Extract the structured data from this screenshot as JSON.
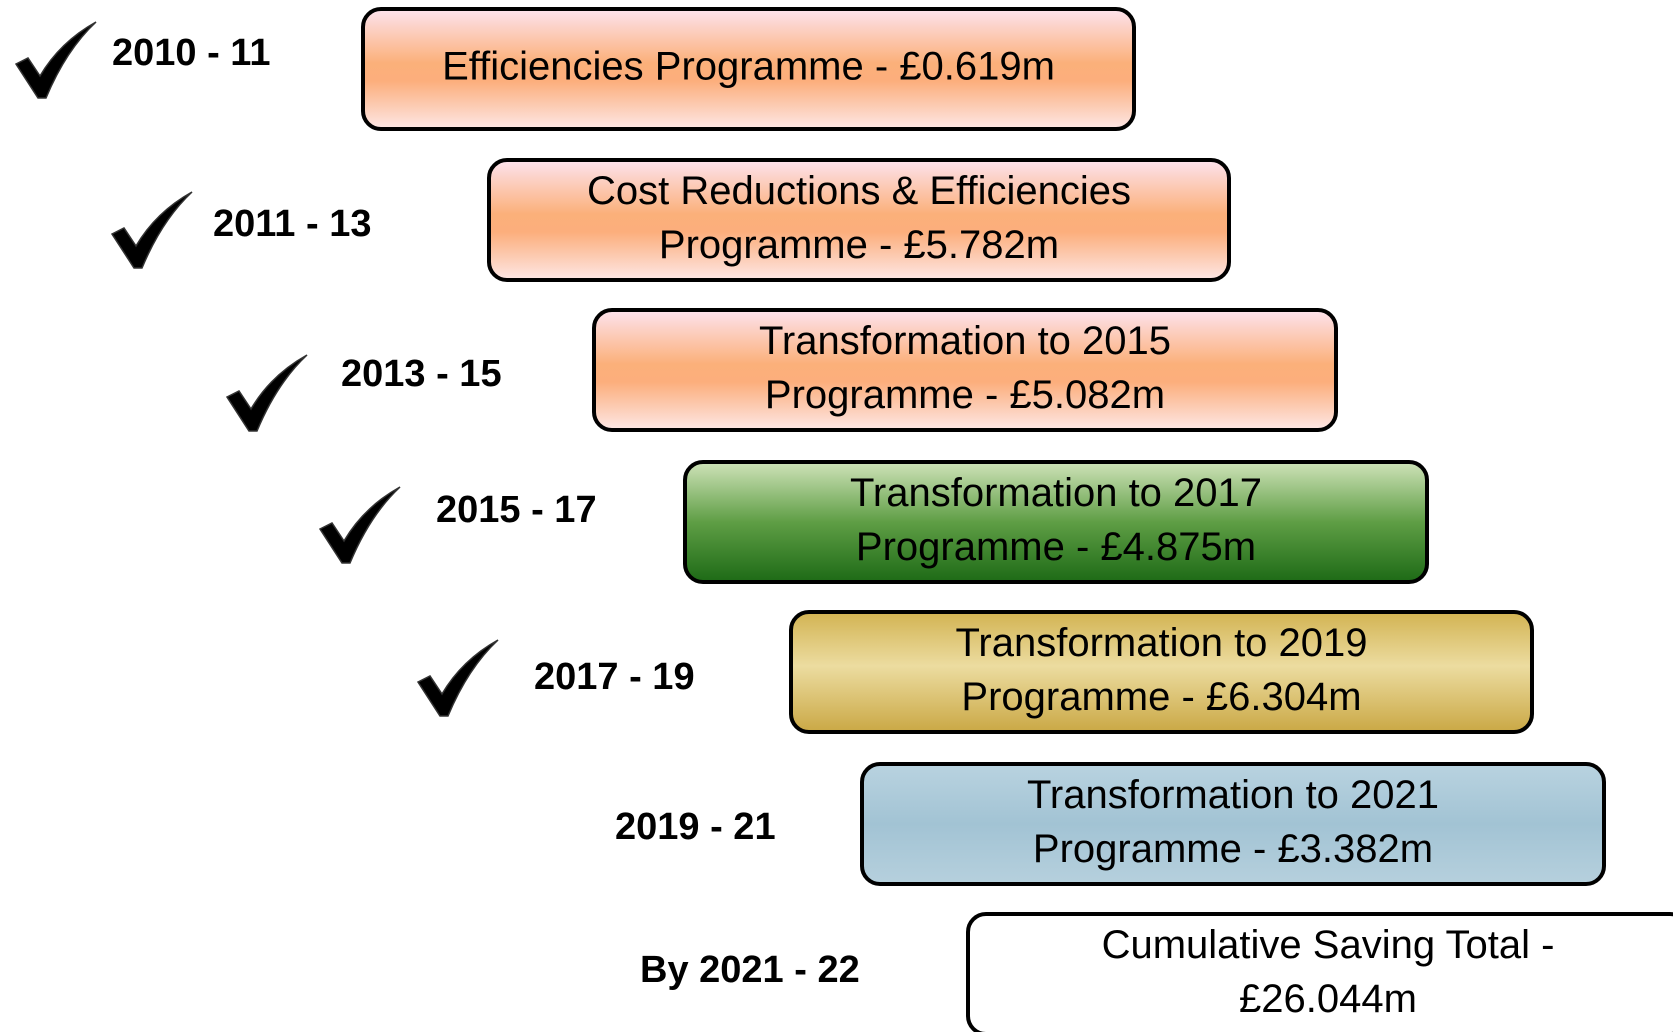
{
  "rows": [
    {
      "period": "2010 - 11",
      "lines": [
        "Efficiencies Programme - £0.619m"
      ],
      "style": "orange",
      "checked": true
    },
    {
      "period": "2011 - 13",
      "lines": [
        "Cost Reductions & Efficiencies",
        "Programme - £5.782m"
      ],
      "style": "orange",
      "checked": true
    },
    {
      "period": "2013 - 15",
      "lines": [
        "Transformation to 2015",
        "Programme - £5.082m"
      ],
      "style": "orange",
      "checked": true
    },
    {
      "period": "2015 - 17",
      "lines": [
        "Transformation to 2017",
        "Programme - £4.875m"
      ],
      "style": "green",
      "checked": true
    },
    {
      "period": "2017 - 19",
      "lines": [
        "Transformation to 2019",
        "Programme - £6.304m"
      ],
      "style": "gold",
      "checked": true
    },
    {
      "period": "2019 - 21",
      "lines": [
        "Transformation to 2021",
        "Programme - £3.382m"
      ],
      "style": "blue",
      "checked": false
    },
    {
      "period": "By 2021 - 22",
      "lines": [
        "Cumulative Saving Total -",
        "£26.044m"
      ],
      "style": "white",
      "checked": false
    }
  ]
}
